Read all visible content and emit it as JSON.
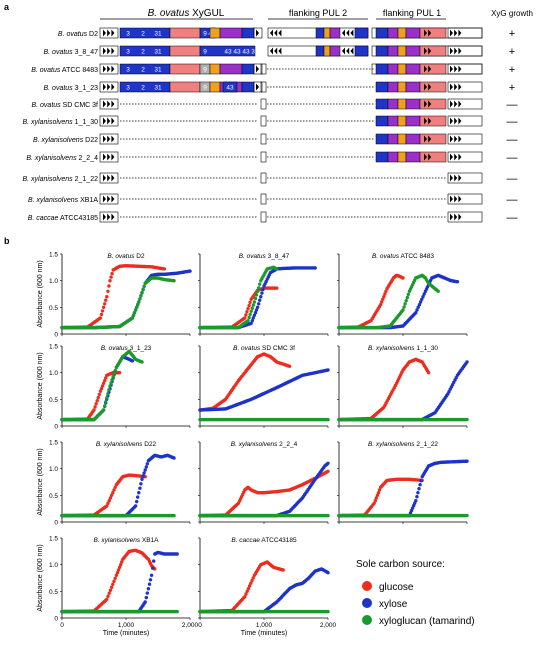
{
  "panel_a": {
    "label": "a",
    "headers": {
      "xygul_italic": "B. ovatus",
      "xygul_rest": " XyGUL",
      "pul2": "flanking PUL 2",
      "pul1": "flanking PUL 1",
      "growth": "XyG growth"
    },
    "strains": [
      {
        "genus": "B. ovatus",
        "rest": " D2",
        "growth": "+"
      },
      {
        "genus": "B. ovatus",
        "rest": " 3_8_47",
        "growth": "+"
      },
      {
        "genus": "B. ovatus",
        "rest": " ATCC 8483",
        "growth": "+"
      },
      {
        "genus": "B. ovatus",
        "rest": " 3_1_23",
        "growth": "+"
      },
      {
        "genus": "B. ovatus",
        "rest": " SD CMC 3f",
        "growth": "—"
      },
      {
        "genus": "B. xylanisolvens",
        "rest": " 1_1_30",
        "growth": "—"
      },
      {
        "genus": "B. xylanisolvens",
        "rest": " D22",
        "growth": "—"
      },
      {
        "genus": "B. xylanisolvens",
        "rest": " 2_2_4",
        "growth": "—"
      },
      {
        "genus": "B. xylanisolvens",
        "rest": " 2_1_22",
        "growth": "—"
      },
      {
        "genus": "B. xylanisolvens",
        "rest": " XB1A",
        "growth": "—"
      },
      {
        "genus": "B. caccae",
        "rest": " ATCC43185",
        "growth": "—"
      }
    ],
    "gene_labels": [
      "3",
      "2",
      "31",
      "9",
      "43",
      "43",
      "43",
      "3"
    ],
    "colors": {
      "blue": "#1f35c8",
      "red": "#f08080",
      "purple": "#9b30c8",
      "orange": "#f0a020",
      "gray": "#b0b0b0"
    }
  },
  "panel_b": {
    "label": "b",
    "legend_title": "Sole carbon source:",
    "legend": [
      {
        "name": "glucose",
        "color": "#ee2d1e"
      },
      {
        "name": "xylose",
        "color": "#1d33c9"
      },
      {
        "name": "xyloglucan (tamarind)",
        "color": "#1a9a2a"
      }
    ],
    "ylabel": "Absorbance (600 nm)",
    "xlabel": "Time (minutes)",
    "yticks": [
      "0",
      "0.5",
      "1.0",
      "1.5"
    ],
    "xticks": [
      "0",
      "1,000",
      "2,000"
    ]
  },
  "chart_data": [
    {
      "type": "scatter",
      "title": "B. ovatus D2",
      "xlim": [
        0,
        2000
      ],
      "ylim": [
        0,
        1.5
      ],
      "series": [
        {
          "name": "glucose",
          "x": [
            0,
            400,
            600,
            700,
            750,
            800,
            900,
            1000,
            1200,
            1400,
            1600
          ],
          "y": [
            0.12,
            0.13,
            0.3,
            0.7,
            1.0,
            1.2,
            1.27,
            1.28,
            1.27,
            1.26,
            1.22
          ]
        },
        {
          "name": "xylose",
          "x": [
            0,
            500,
            900,
            1100,
            1200,
            1300,
            1400,
            1500,
            1600,
            1800,
            2000
          ],
          "y": [
            0.12,
            0.12,
            0.14,
            0.3,
            0.6,
            0.95,
            1.1,
            1.12,
            1.12,
            1.14,
            1.18
          ]
        },
        {
          "name": "xyloglucan",
          "x": [
            0,
            500,
            900,
            1100,
            1200,
            1300,
            1400,
            1500,
            1600,
            1750
          ],
          "y": [
            0.12,
            0.12,
            0.14,
            0.3,
            0.6,
            0.95,
            1.05,
            1.05,
            1.02,
            1.0
          ]
        }
      ]
    },
    {
      "type": "scatter",
      "title": "B. ovatus 3_8_47",
      "xlim": [
        0,
        2000
      ],
      "ylim": [
        0,
        1.5
      ],
      "series": [
        {
          "name": "glucose",
          "x": [
            0,
            500,
            700,
            800,
            900,
            1000,
            1100,
            1200
          ],
          "y": [
            0.12,
            0.13,
            0.3,
            0.65,
            0.82,
            0.86,
            0.86,
            0.86
          ]
        },
        {
          "name": "xylose",
          "x": [
            0,
            600,
            800,
            900,
            1000,
            1100,
            1200,
            1300,
            1500,
            1800
          ],
          "y": [
            0.12,
            0.12,
            0.2,
            0.5,
            0.9,
            1.15,
            1.22,
            1.23,
            1.24,
            1.24
          ]
        },
        {
          "name": "xyloglucan",
          "x": [
            0,
            600,
            750,
            850,
            950,
            1050,
            1150,
            1200
          ],
          "y": [
            0.12,
            0.12,
            0.25,
            0.6,
            1.0,
            1.22,
            1.25,
            1.22
          ]
        }
      ]
    },
    {
      "type": "scatter",
      "title": "B. ovatus ATCC 8483",
      "xlim": [
        0,
        2000
      ],
      "ylim": [
        0,
        1.5
      ],
      "series": [
        {
          "name": "glucose",
          "x": [
            0,
            300,
            500,
            650,
            750,
            850,
            900,
            950,
            1000
          ],
          "y": [
            0.12,
            0.13,
            0.25,
            0.55,
            0.85,
            1.05,
            1.1,
            1.08,
            1.05
          ]
        },
        {
          "name": "xylose",
          "x": [
            0,
            800,
            1000,
            1200,
            1350,
            1450,
            1550,
            1650,
            1750,
            1850
          ],
          "y": [
            0.12,
            0.12,
            0.15,
            0.4,
            0.8,
            1.05,
            1.1,
            1.05,
            1.0,
            0.98
          ]
        },
        {
          "name": "xyloglucan",
          "x": [
            0,
            600,
            800,
            1000,
            1100,
            1200,
            1300,
            1350,
            1400,
            1500,
            1550
          ],
          "y": [
            0.12,
            0.12,
            0.15,
            0.45,
            0.8,
            1.05,
            1.1,
            1.05,
            0.95,
            0.85,
            0.8
          ]
        }
      ]
    },
    {
      "type": "scatter",
      "title": "B. ovatus 3_1_23",
      "xlim": [
        0,
        2000
      ],
      "ylim": [
        0,
        1.5
      ],
      "series": [
        {
          "name": "glucose",
          "x": [
            0,
            400,
            500,
            600,
            700,
            800,
            900
          ],
          "y": [
            0.12,
            0.13,
            0.3,
            0.65,
            0.95,
            1.0,
            1.0
          ]
        },
        {
          "name": "xylose",
          "x": [
            0,
            500,
            650,
            750,
            850,
            950,
            1050,
            1100
          ],
          "y": [
            0.12,
            0.12,
            0.3,
            0.7,
            1.1,
            1.3,
            1.25,
            1.22
          ]
        },
        {
          "name": "xyloglucan",
          "x": [
            0,
            500,
            650,
            750,
            850,
            950,
            1050,
            1150,
            1250
          ],
          "y": [
            0.12,
            0.12,
            0.3,
            0.75,
            1.1,
            1.3,
            1.4,
            1.25,
            1.2
          ]
        }
      ]
    },
    {
      "type": "scatter",
      "title": "B. ovatus SD CMC 3f",
      "xlim": [
        0,
        2000
      ],
      "ylim": [
        0,
        1.5
      ],
      "series": [
        {
          "name": "glucose",
          "x": [
            0,
            200,
            400,
            600,
            800,
            900,
            1000,
            1100,
            1200,
            1400
          ],
          "y": [
            0.3,
            0.33,
            0.5,
            0.85,
            1.15,
            1.3,
            1.35,
            1.3,
            1.2,
            1.12
          ]
        },
        {
          "name": "xylose",
          "x": [
            0,
            400,
            800,
            1200,
            1600,
            2000
          ],
          "y": [
            0.3,
            0.32,
            0.5,
            0.72,
            0.95,
            1.05
          ]
        },
        {
          "name": "xyloglucan",
          "x": [
            0,
            2000
          ],
          "y": [
            0.12,
            0.12
          ]
        }
      ]
    },
    {
      "type": "scatter",
      "title": "B. xylanisolvens 1_1_30",
      "xlim": [
        0,
        2000
      ],
      "ylim": [
        0,
        1.5
      ],
      "series": [
        {
          "name": "glucose",
          "x": [
            0,
            500,
            700,
            900,
            1000,
            1100,
            1200,
            1300,
            1350,
            1400
          ],
          "y": [
            0.12,
            0.14,
            0.35,
            0.8,
            1.05,
            1.2,
            1.25,
            1.2,
            1.1,
            1.0
          ]
        },
        {
          "name": "xylose",
          "x": [
            0,
            1300,
            1500,
            1700,
            1850,
            2000
          ],
          "y": [
            0.12,
            0.12,
            0.25,
            0.6,
            0.95,
            1.2
          ]
        },
        {
          "name": "xyloglucan",
          "x": [
            0,
            2000
          ],
          "y": [
            0.12,
            0.12
          ]
        }
      ]
    },
    {
      "type": "scatter",
      "title": "B. xylanisolvens D22",
      "xlim": [
        0,
        2000
      ],
      "ylim": [
        0,
        1.5
      ],
      "series": [
        {
          "name": "glucose",
          "x": [
            0,
            500,
            700,
            850,
            950,
            1050,
            1150,
            1300
          ],
          "y": [
            0.12,
            0.13,
            0.3,
            0.7,
            0.85,
            0.88,
            0.87,
            0.85
          ]
        },
        {
          "name": "xylose",
          "x": [
            0,
            1000,
            1150,
            1250,
            1350,
            1450,
            1550,
            1650,
            1750
          ],
          "y": [
            0.12,
            0.12,
            0.3,
            0.8,
            1.15,
            1.25,
            1.22,
            1.25,
            1.2
          ]
        },
        {
          "name": "xyloglucan",
          "x": [
            0,
            1750
          ],
          "y": [
            0.12,
            0.12
          ]
        }
      ]
    },
    {
      "type": "scatter",
      "title": "B. xylanisolvens 2_2_4",
      "xlim": [
        0,
        2000
      ],
      "ylim": [
        0,
        1.5
      ],
      "series": [
        {
          "name": "glucose",
          "x": [
            0,
            400,
            600,
            700,
            750,
            800,
            900,
            1000,
            1200,
            1400,
            1600,
            1800,
            2000
          ],
          "y": [
            0.12,
            0.13,
            0.35,
            0.6,
            0.65,
            0.6,
            0.55,
            0.55,
            0.57,
            0.6,
            0.7,
            0.82,
            0.95
          ]
        },
        {
          "name": "xylose",
          "x": [
            0,
            1200,
            1400,
            1600,
            1800,
            1950,
            2000
          ],
          "y": [
            0.12,
            0.12,
            0.2,
            0.45,
            0.8,
            1.05,
            1.1
          ]
        },
        {
          "name": "xyloglucan",
          "x": [
            0,
            2000
          ],
          "y": [
            0.12,
            0.12
          ]
        }
      ]
    },
    {
      "type": "scatter",
      "title": "B. xylanisolvens 2_1_22",
      "xlim": [
        0,
        2000
      ],
      "ylim": [
        0,
        1.5
      ],
      "series": [
        {
          "name": "glucose",
          "x": [
            0,
            400,
            550,
            650,
            750,
            900,
            1100,
            1300
          ],
          "y": [
            0.12,
            0.13,
            0.35,
            0.65,
            0.78,
            0.8,
            0.8,
            0.78
          ]
        },
        {
          "name": "xylose",
          "x": [
            0,
            1100,
            1200,
            1300,
            1400,
            1500,
            1600,
            1800,
            2000
          ],
          "y": [
            0.12,
            0.12,
            0.4,
            0.85,
            1.05,
            1.1,
            1.12,
            1.13,
            1.14
          ]
        },
        {
          "name": "xyloglucan",
          "x": [
            0,
            2000
          ],
          "y": [
            0.12,
            0.12
          ]
        }
      ]
    },
    {
      "type": "scatter",
      "title": "B. xylanisolvens XB1A",
      "xlim": [
        0,
        2000
      ],
      "ylim": [
        0,
        1.5
      ],
      "series": [
        {
          "name": "glucose",
          "x": [
            0,
            500,
            700,
            850,
            950,
            1050,
            1150,
            1250,
            1350,
            1400,
            1450
          ],
          "y": [
            0.12,
            0.13,
            0.35,
            0.8,
            1.1,
            1.25,
            1.27,
            1.22,
            1.1,
            0.98,
            0.92
          ]
        },
        {
          "name": "xylose",
          "x": [
            0,
            1200,
            1300,
            1400,
            1450,
            1500,
            1600,
            1800
          ],
          "y": [
            0.12,
            0.12,
            0.3,
            0.8,
            1.2,
            1.23,
            1.2,
            1.2
          ]
        },
        {
          "name": "xyloglucan",
          "x": [
            0,
            1800
          ],
          "y": [
            0.12,
            0.12
          ]
        }
      ]
    },
    {
      "type": "scatter",
      "title": "B. caccae ATCC43185",
      "xlim": [
        0,
        2000
      ],
      "ylim": [
        0,
        1.5
      ],
      "series": [
        {
          "name": "glucose",
          "x": [
            0,
            500,
            700,
            850,
            950,
            1050,
            1150,
            1300
          ],
          "y": [
            0.12,
            0.14,
            0.4,
            0.8,
            1.0,
            1.05,
            0.95,
            0.9
          ]
        },
        {
          "name": "xylose",
          "x": [
            0,
            1000,
            1200,
            1400,
            1500,
            1600,
            1700,
            1800,
            1900,
            2000
          ],
          "y": [
            0.12,
            0.12,
            0.3,
            0.55,
            0.62,
            0.65,
            0.75,
            0.88,
            0.92,
            0.85
          ]
        },
        {
          "name": "xyloglucan",
          "x": [
            0,
            2000
          ],
          "y": [
            0.12,
            0.12
          ]
        }
      ]
    }
  ]
}
